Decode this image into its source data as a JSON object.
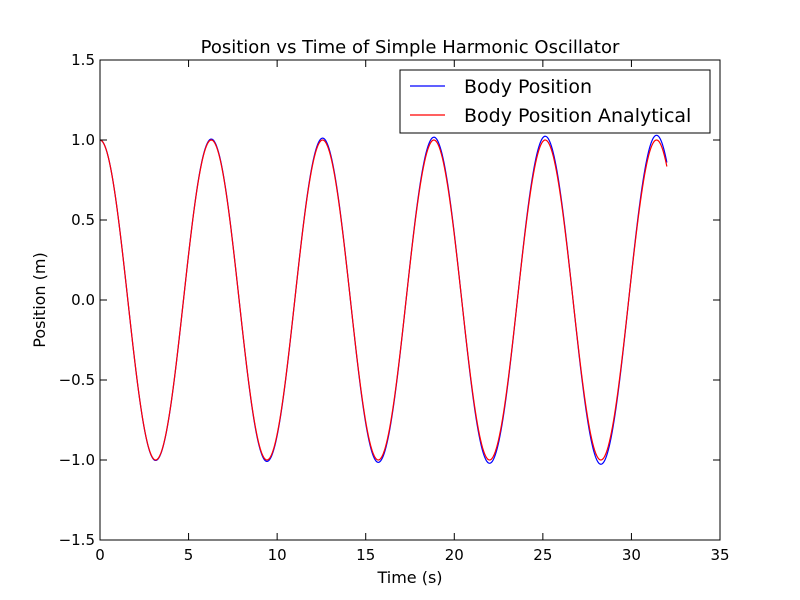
{
  "chart_data": {
    "type": "line",
    "title": "Position vs Time of Simple Harmonic Oscillator",
    "xlabel": "Time (s)",
    "ylabel": "Position (m)",
    "xlim": [
      0,
      35
    ],
    "ylim": [
      -1.5,
      1.5
    ],
    "xticks": [
      0,
      5,
      10,
      15,
      20,
      25,
      30,
      35
    ],
    "xtick_labels": [
      "0",
      "5",
      "10",
      "15",
      "20",
      "25",
      "30",
      "35"
    ],
    "yticks": [
      -1.5,
      -1.0,
      -0.5,
      0.0,
      0.5,
      1.0,
      1.5
    ],
    "ytick_labels": [
      "−1.5",
      "−1.0",
      "−0.5",
      "0.0",
      "0.5",
      "1.0",
      "1.5"
    ],
    "grid": false,
    "legend_position": "top-right",
    "x_range": [
      0,
      32
    ],
    "series": [
      {
        "name": "Body Position",
        "color": "#0000ff",
        "function": "cos(t) with slowly growing amplitude",
        "amplitude_at_t0": 1.0,
        "amplitude_at_t32": 1.03
      },
      {
        "name": "Body Position Analytical",
        "color": "#ff0000",
        "function": "cos(t)",
        "amplitude_at_t0": 1.0,
        "amplitude_at_t32": 1.0
      }
    ]
  }
}
